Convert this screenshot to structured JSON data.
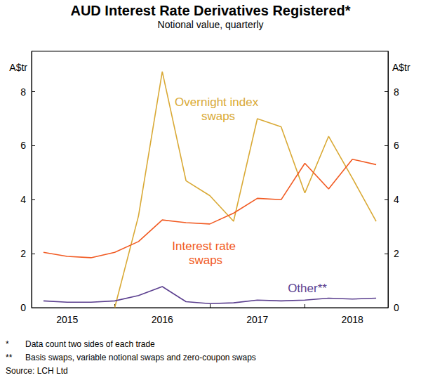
{
  "chart_data": {
    "type": "line",
    "title": "AUD Interest Rate Derivatives Registered*",
    "subtitle": "Notional value, quarterly",
    "y_label": "A$tr",
    "y2_label": "A$tr",
    "categories": [
      null,
      "2015",
      null,
      null,
      null,
      "2016",
      null,
      null,
      null,
      "2017",
      null,
      null,
      null,
      "2018",
      null
    ],
    "series": [
      {
        "name": "Overnight index swaps",
        "color": "#d9a935",
        "values": [
          null,
          null,
          null,
          0,
          3.4,
          8.75,
          4.7,
          4.15,
          3.2,
          7.0,
          6.7,
          4.25,
          6.35,
          4.8,
          3.2
        ]
      },
      {
        "name": "Interest rate swaps",
        "color": "#f15a22",
        "values": [
          2.05,
          1.9,
          1.85,
          2.05,
          2.45,
          3.25,
          3.15,
          3.1,
          3.5,
          4.05,
          4.0,
          5.35,
          4.4,
          5.5,
          5.3
        ]
      },
      {
        "name": "Other**",
        "color": "#5b3f8f",
        "values": [
          0.25,
          0.2,
          0.2,
          0.25,
          0.45,
          0.78,
          0.22,
          0.15,
          0.18,
          0.28,
          0.25,
          0.28,
          0.35,
          0.32,
          0.35
        ]
      }
    ],
    "ylim": [
      0,
      9.5
    ],
    "yticks": [
      0,
      2,
      4,
      6,
      8
    ],
    "y2lim": [
      0,
      9.5
    ],
    "y2ticks": [
      0,
      2,
      4,
      6,
      8
    ],
    "grid": false,
    "notes": [
      {
        "mark": "*",
        "text": "Data count two sides of each trade"
      },
      {
        "mark": "**",
        "text": "Basis swaps, variable notional swaps and zero-coupon swaps"
      }
    ],
    "source": "Source: LCH Ltd"
  }
}
